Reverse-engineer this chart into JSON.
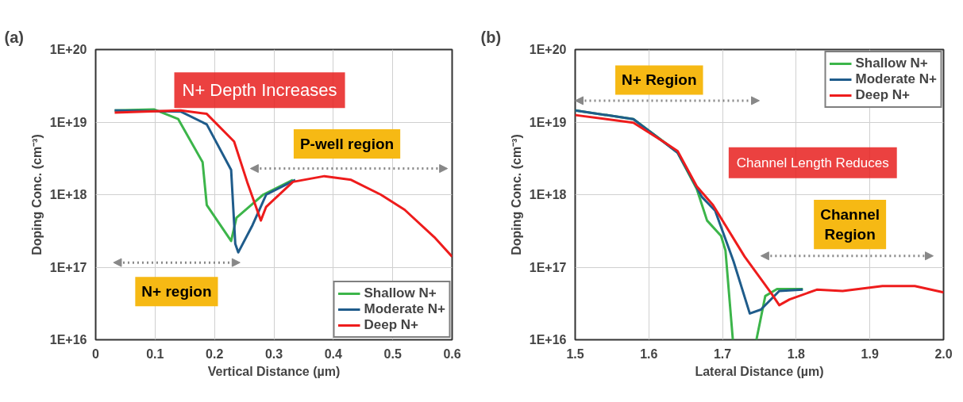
{
  "chart_data": [
    {
      "type": "line",
      "title": "(a)",
      "xlabel": "Vertical Distance (µm)",
      "ylabel": "Doping Conc. (cm⁻³)",
      "log": "y",
      "grid": true,
      "legend": "bottom right",
      "xlim": [
        0,
        0.6
      ],
      "xticks": [
        0,
        0.1,
        0.2,
        0.3,
        0.4,
        0.5,
        0.6
      ],
      "ylim": [
        1e+16,
        1e+20
      ],
      "yticks": [
        {
          "value": 1e+16,
          "label": "1E+16"
        },
        {
          "value": 1e+17,
          "label": "1E+17"
        },
        {
          "value": 1e+18,
          "label": "1E+18"
        },
        {
          "value": 1e+19,
          "label": "1E+19"
        },
        {
          "value": 1e+20,
          "label": "1E+20"
        }
      ],
      "annotations": [
        "N+ Depth Increases",
        "P-well region",
        "N+ region"
      ],
      "series": [
        {
          "name": "Shallow N+",
          "color": "#3cb54a",
          "x": [
            0.032,
            0.098,
            0.139,
            0.18,
            0.187,
            0.228,
            0.237,
            0.282,
            0.332
          ],
          "values": [
            1.45e+19,
            1.5e+19,
            1.1e+19,
            2.8e+18,
            7.2e+17,
            2.3e+17,
            4.8e+17,
            1e+18,
            1.6e+18
          ]
        },
        {
          "name": "Moderate N+",
          "color": "#1f5c8b",
          "x": [
            0.032,
            0.143,
            0.187,
            0.228,
            0.235,
            0.24,
            0.264,
            0.287,
            0.336
          ],
          "values": [
            1.45e+19,
            1.4e+19,
            9.3e+18,
            2.2e+18,
            2.1e+17,
            1.6e+17,
            3.8e+17,
            1e+18,
            1.6e+18
          ]
        },
        {
          "name": "Deep N+",
          "color": "#ee1c1c",
          "x": [
            0.032,
            0.143,
            0.187,
            0.233,
            0.255,
            0.278,
            0.287,
            0.332,
            0.385,
            0.43,
            0.48,
            0.52,
            0.57,
            0.6
          ],
          "values": [
            1.35e+19,
            1.45e+19,
            1.3e+19,
            5.4e+18,
            1.5e+18,
            4.4e+17,
            6.8e+17,
            1.5e+18,
            1.8e+18,
            1.6e+18,
            1e+18,
            6.2e+17,
            2.6e+17,
            1.4e+17
          ]
        }
      ]
    },
    {
      "type": "line",
      "title": "(b)",
      "xlabel": "Lateral Distance (µm)",
      "ylabel": "Doping Conc. (cm⁻³)",
      "log": "y",
      "grid": true,
      "legend": "top right",
      "xlim": [
        1.5,
        2.0
      ],
      "xticks": [
        1.5,
        1.6,
        1.7,
        1.8,
        1.9,
        {
          "value": 2.0,
          "label": "2.0"
        }
      ],
      "ylim": [
        1e+16,
        1e+20
      ],
      "yticks": [
        {
          "value": 1e+16,
          "label": "1E+16"
        },
        {
          "value": 1e+17,
          "label": "1E+17"
        },
        {
          "value": 1e+18,
          "label": "1E+18"
        },
        {
          "value": 1e+19,
          "label": "1E+19"
        },
        {
          "value": 1e+20,
          "label": "1E+20"
        }
      ],
      "annotations": [
        "N+ Region",
        "Channel Length Reduces",
        "Channel\nRegion"
      ],
      "series": [
        {
          "name": "Shallow N+",
          "color": "#3cb54a",
          "x": [
            1.5,
            1.579,
            1.622,
            1.639,
            1.665,
            1.679,
            1.698,
            1.704,
            1.714,
            1.73,
            1.746,
            1.758,
            1.774,
            1.809
          ],
          "values": [
            1.45e+19,
            1.1e+19,
            5.2e+18,
            3.8e+18,
            1.2e+18,
            4.4e+17,
            2.7e+17,
            1.7e+17,
            1e+16,
            null,
            1e+16,
            4e+16,
            5e+16,
            5e+16
          ]
        },
        {
          "name": "Moderate N+",
          "color": "#1f5c8b",
          "x": [
            1.5,
            1.579,
            1.639,
            1.672,
            1.69,
            1.715,
            1.737,
            1.752,
            1.777,
            1.809
          ],
          "values": [
            1.45e+19,
            1.1e+19,
            3.8e+18,
            9.3e+17,
            6e+17,
            1.2e+17,
            2.3e+16,
            2.6e+16,
            4.7e+16,
            4.9e+16
          ]
        },
        {
          "name": "Deep N+",
          "color": "#ee1c1c",
          "x": [
            1.5,
            1.579,
            1.622,
            1.639,
            1.665,
            1.687,
            1.73,
            1.766,
            1.777,
            1.791,
            1.828,
            1.863,
            1.917,
            1.961,
            2.0
          ],
          "values": [
            1.25e+19,
            9.8e+18,
            5.2e+18,
            4e+18,
            1.3e+18,
            7.2e+17,
            1.4e+17,
            4.4e+16,
            3e+16,
            3.6e+16,
            4.9e+16,
            4.7e+16,
            5.5e+16,
            5.5e+16,
            4.5e+16
          ]
        }
      ]
    }
  ]
}
